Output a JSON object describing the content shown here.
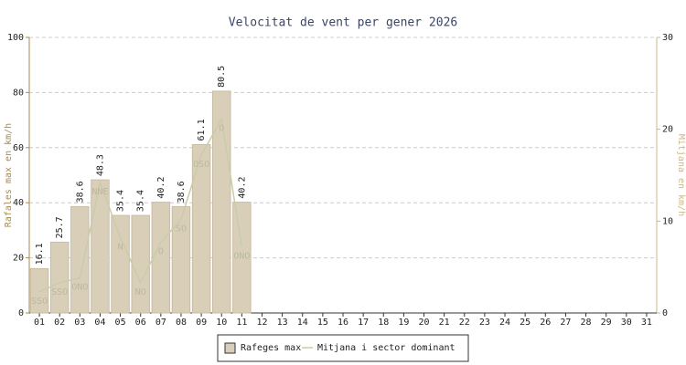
{
  "chart_data": {
    "type": "bar",
    "title": "Velocitat de vent per gener 2026",
    "y_label": "Rafales max en km/h",
    "y2_label": "Mitjana en km/h",
    "categories": [
      "01",
      "02",
      "03",
      "04",
      "05",
      "06",
      "07",
      "08",
      "09",
      "10",
      "11",
      "12",
      "13",
      "14",
      "15",
      "16",
      "17",
      "18",
      "19",
      "20",
      "21",
      "22",
      "23",
      "24",
      "25",
      "26",
      "27",
      "28",
      "29",
      "30",
      "31"
    ],
    "series": [
      {
        "name": "Rafeges max",
        "type": "bar",
        "color": "#d9cfb9",
        "values": [
          16.1,
          25.7,
          38.6,
          48.3,
          35.4,
          35.4,
          40.2,
          38.6,
          61.1,
          80.5,
          40.2,
          null,
          null,
          null,
          null,
          null,
          null,
          null,
          null,
          null,
          null,
          null,
          null,
          null,
          null,
          null,
          null,
          null,
          null,
          null,
          null
        ]
      },
      {
        "name": "Mitjana i sector dominant",
        "type": "line",
        "axis": "y2",
        "color": "#c9cca8",
        "values": [
          2.3,
          3.3,
          3.8,
          14.2,
          8.2,
          3.3,
          7.7,
          10.2,
          17.2,
          21.1,
          7.2,
          null,
          null,
          null,
          null,
          null,
          null,
          null,
          null,
          null,
          null,
          null,
          null,
          null,
          null,
          null,
          null,
          null,
          null,
          null,
          null
        ],
        "sectors": [
          "SSO",
          "SSO",
          "ONO",
          "NNE",
          "N",
          "NO",
          "O",
          "SO",
          "OSO",
          "O",
          "ONO",
          null,
          null,
          null,
          null,
          null,
          null,
          null,
          null,
          null,
          null,
          null,
          null,
          null,
          null,
          null,
          null,
          null,
          null,
          null,
          null
        ]
      }
    ],
    "ylim": [
      0,
      100
    ],
    "yticks": [
      0,
      20,
      40,
      60,
      80,
      100
    ],
    "y2lim": [
      0,
      30
    ],
    "y2ticks": [
      0,
      10,
      20,
      30
    ],
    "grid": true
  }
}
